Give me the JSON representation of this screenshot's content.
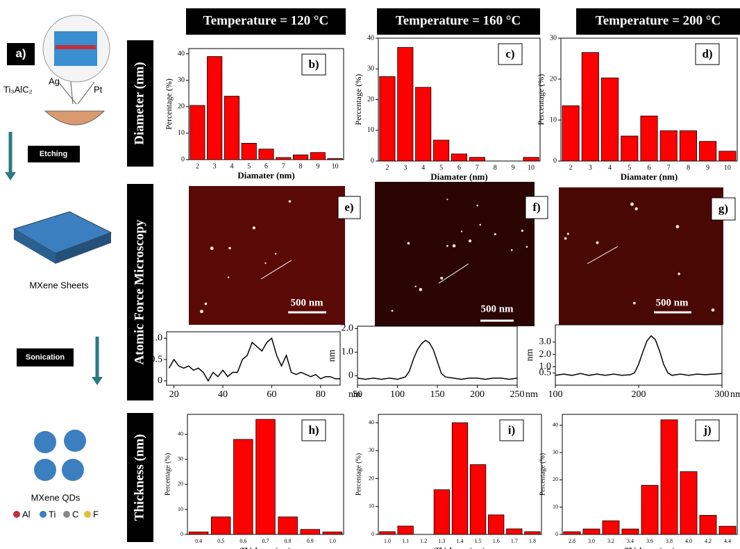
{
  "schematic": {
    "panel_label": "a)",
    "precursor": "Ti₃AlC₂",
    "anode": "Ag",
    "cathode": "Pt",
    "step1": "Etching",
    "sheets": "MXene Sheets",
    "step2": "Sonication",
    "qds": "MXene QDs",
    "legend": [
      "Al",
      "Ti",
      "C",
      "F"
    ]
  },
  "headers": [
    "Temperature = 120 °C",
    "Temperature = 160 °C",
    "Temperature = 200 °C"
  ],
  "row_labels": [
    "Diameter (nm)",
    "Atomic Force Microscopy",
    "Thickness (nm)"
  ],
  "afm": [
    {
      "label": "e)",
      "scale": "500 nm"
    },
    {
      "label": "f)",
      "scale": "500 nm"
    },
    {
      "label": "g)",
      "scale": "500 nm"
    }
  ],
  "chart_data": [
    {
      "type": "bar",
      "panel_label": "b)",
      "x_label": "Diamater (nm)",
      "y_label": "Percentage (%)",
      "categories": [
        "2",
        "3",
        "4",
        "5",
        "6",
        "7",
        "8",
        "9",
        "10"
      ],
      "values": [
        20.5,
        39,
        24,
        6.2,
        4,
        0.8,
        1.8,
        2.7,
        0.4
      ],
      "color": "#ff0000",
      "ylim": [
        0,
        42
      ],
      "yticks": [
        0,
        10,
        20,
        30,
        40
      ]
    },
    {
      "type": "bar",
      "panel_label": "c)",
      "x_label": "Diamater (nm)",
      "y_label": "Percentage (%)",
      "categories": [
        "2",
        "3",
        "4",
        "5",
        "6",
        "7",
        "8",
        "9",
        "10"
      ],
      "values": [
        27.5,
        37,
        24,
        6.8,
        2.3,
        1.2,
        0,
        0,
        1.2
      ],
      "color": "#ff0000",
      "ylim": [
        0,
        40
      ],
      "yticks": [
        0,
        10,
        20,
        30,
        40
      ]
    },
    {
      "type": "bar",
      "panel_label": "d)",
      "x_label": "Diamater (nm)",
      "y_label": "Percentage (%)",
      "categories": [
        "2",
        "3",
        "4",
        "5",
        "6",
        "7",
        "8",
        "9",
        "10"
      ],
      "values": [
        13.5,
        26.5,
        20.3,
        6.1,
        11,
        7.4,
        7.4,
        4.8,
        2.4
      ],
      "color": "#ff0000",
      "ylim": [
        0,
        30
      ],
      "yticks": [
        0,
        10,
        20,
        30
      ]
    },
    {
      "type": "line",
      "x_unit": "nm",
      "x": [
        18,
        20,
        22,
        24,
        26,
        28,
        30,
        32,
        34,
        36,
        38,
        40,
        42,
        44,
        46,
        48,
        50,
        52,
        54,
        56,
        58,
        60,
        62,
        64,
        66,
        68,
        70,
        72,
        74,
        76,
        78,
        80,
        82,
        84,
        86,
        88
      ],
      "values": [
        0.3,
        0.5,
        0.35,
        0.3,
        0.35,
        0.25,
        0.3,
        0.2,
        0,
        0.2,
        0.1,
        0.25,
        0.1,
        0.2,
        0.2,
        0.5,
        0.6,
        0.9,
        0.8,
        0.7,
        0.9,
        1.0,
        0.6,
        0.35,
        0.6,
        0.2,
        0.15,
        0.2,
        0.15,
        0.1,
        0.15,
        0.05,
        0.1,
        0.1,
        0.05,
        0.05
      ],
      "color": "#000000",
      "xlim": [
        17,
        88
      ],
      "xticks": [
        20,
        40,
        60,
        80
      ],
      "ylim": [
        -0.1,
        1.15
      ],
      "yticks": [
        0,
        0.5,
        {
          "value": 1,
          "label": "1.0"
        }
      ]
    },
    {
      "type": "line",
      "x_unit": "nm",
      "y_label": "nm",
      "x": [
        50,
        60,
        70,
        80,
        90,
        100,
        110,
        115,
        120,
        125,
        130,
        135,
        140,
        145,
        150,
        155,
        160,
        170,
        180,
        190,
        200,
        210,
        220,
        230,
        240,
        250
      ],
      "values": [
        -0.1,
        -0.15,
        -0.1,
        -0.15,
        -0.1,
        -0.15,
        -0.05,
        0.2,
        0.7,
        1.1,
        1.35,
        1.5,
        1.4,
        1.1,
        0.6,
        0.1,
        -0.05,
        -0.1,
        -0.15,
        -0.1,
        -0.1,
        -0.15,
        -0.1,
        -0.1,
        -0.15,
        -0.1
      ],
      "color": "#000000",
      "xlim": [
        50,
        250
      ],
      "xticks": [
        50,
        100,
        150,
        200,
        250
      ],
      "ylim": [
        -0.4,
        2.1
      ],
      "yticks": [
        0,
        {
          "value": 1,
          "label": "1.0"
        },
        {
          "value": 2,
          "label": "2.0"
        }
      ]
    },
    {
      "type": "line",
      "x_unit": "nm",
      "y_label": "nm",
      "x": [
        100,
        110,
        120,
        130,
        140,
        150,
        160,
        170,
        180,
        190,
        195,
        200,
        205,
        210,
        215,
        220,
        225,
        230,
        235,
        240,
        250,
        260,
        270,
        280,
        290,
        300
      ],
      "values": [
        0.3,
        0.4,
        0.3,
        0.45,
        0.3,
        0.4,
        0.3,
        0.4,
        0.3,
        0.35,
        0.5,
        1.2,
        2.2,
        3.1,
        3.5,
        3.2,
        2.3,
        1.2,
        0.5,
        0.3,
        0.4,
        0.3,
        0.4,
        0.35,
        0.4,
        0.45
      ],
      "color": "#000000",
      "xlim": [
        100,
        300
      ],
      "xticks": [
        100,
        200,
        300
      ],
      "ylim": [
        -0.5,
        4.4
      ],
      "yticks": [
        0.5,
        {
          "value": 1,
          "label": "1.0"
        },
        {
          "value": 2,
          "label": "2.0"
        },
        {
          "value": 3,
          "label": "3.0"
        }
      ]
    },
    {
      "type": "bar",
      "panel_label": "h)",
      "x_label": "Thickness (nm)",
      "y_label": "Percentage (%)",
      "categories": [
        "0.4",
        "0.5",
        "0.6",
        "0.7",
        "0.8",
        "0.9",
        "1.0"
      ],
      "values": [
        1,
        7,
        38,
        46,
        7,
        2,
        1
      ],
      "color": "#ff0000",
      "ylim": [
        0,
        48
      ],
      "yticks": [
        0,
        10,
        20,
        30,
        40
      ]
    },
    {
      "type": "bar",
      "panel_label": "i)",
      "x_label": "Thickness (nm)",
      "y_label": "Percentage (%)",
      "categories": [
        "1.0",
        "1.1",
        "1.2",
        "1.3",
        "1.4",
        "1.5",
        "1.6",
        "1.7",
        "1.8"
      ],
      "values": [
        1,
        3,
        0,
        16,
        40,
        25,
        7,
        2,
        1
      ],
      "color": "#ff0000",
      "ylim": [
        0,
        43
      ],
      "yticks": [
        0,
        10,
        20,
        30,
        40
      ]
    },
    {
      "type": "bar",
      "panel_label": "j)",
      "x_label": "Thickness (nm)",
      "y_label": "Percentage (%)",
      "categories": [
        "2.8",
        "3.0",
        "3.2",
        "3.4",
        "3.6",
        "3.8",
        "4.0",
        "4.2",
        "4.4"
      ],
      "values": [
        1,
        2,
        5,
        2,
        18,
        42,
        23,
        7,
        3
      ],
      "color": "#ff0000",
      "ylim": [
        0,
        44
      ],
      "yticks": [
        0,
        10,
        20,
        30,
        40
      ]
    }
  ]
}
